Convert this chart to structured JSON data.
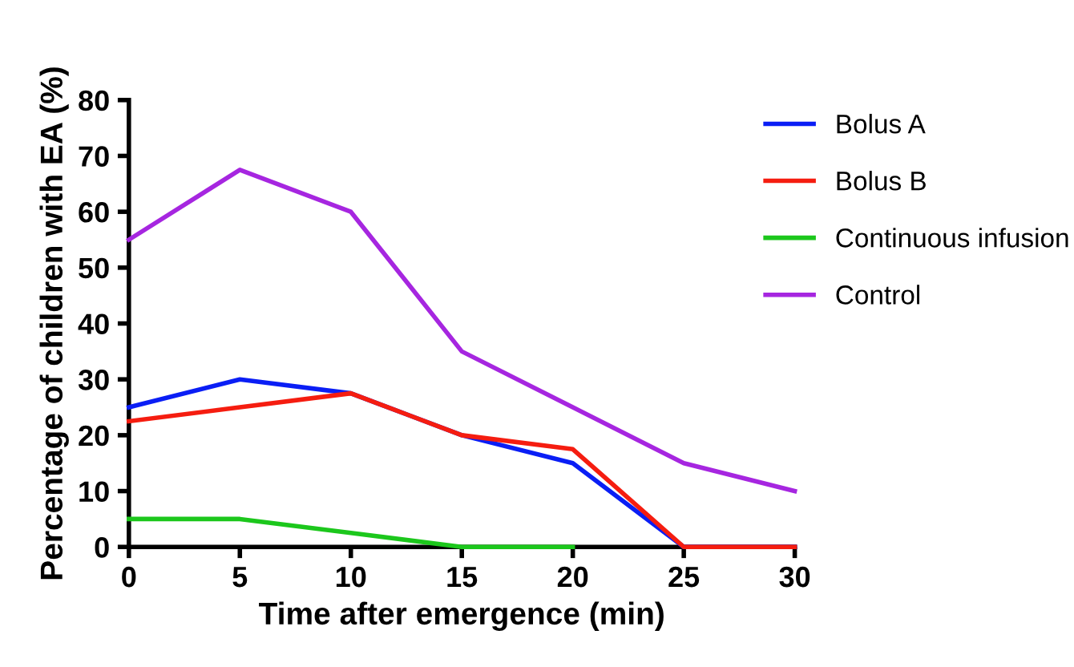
{
  "chart_data": {
    "type": "line",
    "xlabel": "Time after emergence (min)",
    "ylabel": "Percentage of children with EA (%)",
    "x": [
      0,
      5,
      10,
      15,
      20,
      25,
      30
    ],
    "series": [
      {
        "name": "Bolus A",
        "color": "#0a1ef5",
        "values": [
          25,
          30,
          27.5,
          20,
          15,
          0,
          0
        ]
      },
      {
        "name": "Bolus B",
        "color": "#f51d10",
        "values": [
          22.5,
          25,
          27.5,
          20,
          17.5,
          0,
          0
        ]
      },
      {
        "name": "Continuous infusion",
        "color": "#1cc71c",
        "values": [
          5,
          5,
          2.5,
          0,
          0,
          null,
          null
        ]
      },
      {
        "name": "Control",
        "color": "#a626e0",
        "values": [
          55,
          67.5,
          60,
          35,
          25,
          15,
          10
        ]
      }
    ],
    "xlim": [
      0,
      30
    ],
    "xticks": [
      0,
      5,
      10,
      15,
      20,
      25,
      30
    ],
    "ylim": [
      0,
      80
    ],
    "yticks": [
      0,
      10,
      20,
      30,
      40,
      50,
      60,
      70,
      80
    ],
    "grid": false,
    "legend": "right",
    "marker": "none",
    "line_style": "solid"
  }
}
